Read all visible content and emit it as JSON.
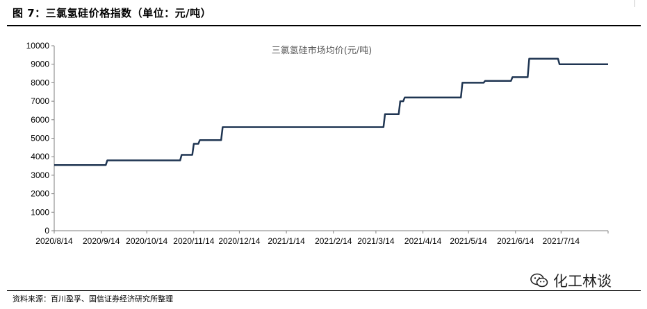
{
  "header": {
    "title": "图 7：三氯氢硅价格指数（单位：元/吨）"
  },
  "footer": {
    "source": "资料来源：百川盈孚、国信证券经济研究所整理",
    "watermark": "化工林谈",
    "watermark_icon": "wechat-icon"
  },
  "colors": {
    "line": "#1f3552",
    "axis": "#7f7f7f"
  },
  "chart_data": {
    "type": "line",
    "title": "",
    "xlabel": "",
    "ylabel": "",
    "legend": {
      "label": "三氯氢硅市场均价(元/吨)",
      "placement": "top-center"
    },
    "ylim": [
      0,
      10000
    ],
    "yticks": [
      0,
      1000,
      2000,
      3000,
      4000,
      5000,
      6000,
      7000,
      8000,
      9000,
      10000
    ],
    "xlim": [
      "2020-08-14",
      "2021-08-14"
    ],
    "xticks": [
      {
        "date": "2020-08-14",
        "label": "2020/8/14"
      },
      {
        "date": "2020-09-14",
        "label": "2020/9/14"
      },
      {
        "date": "2020-10-14",
        "label": "2020/10/14"
      },
      {
        "date": "2020-11-14",
        "label": "2020/11/14"
      },
      {
        "date": "2020-12-14",
        "label": "2020/12/14"
      },
      {
        "date": "2021-01-14",
        "label": "2021/1/14"
      },
      {
        "date": "2021-02-14",
        "label": "2021/2/14"
      },
      {
        "date": "2021-03-14",
        "label": "2021/3/14"
      },
      {
        "date": "2021-04-14",
        "label": "2021/4/14"
      },
      {
        "date": "2021-05-14",
        "label": "2021/5/14"
      },
      {
        "date": "2021-06-14",
        "label": "2021/6/14"
      },
      {
        "date": "2021-07-14",
        "label": "2021/7/14"
      },
      {
        "date": "2021-08-14",
        "label": ""
      }
    ],
    "series": [
      {
        "name": "三氯氢硅市场均价(元/吨)",
        "x": [
          "2020-08-14",
          "2020-09-17",
          "2020-09-18",
          "2020-11-05",
          "2020-11-06",
          "2020-11-13",
          "2020-11-14",
          "2020-11-17",
          "2020-11-18",
          "2020-12-02",
          "2020-12-03",
          "2021-03-19",
          "2021-03-20",
          "2021-03-29",
          "2021-03-30",
          "2021-04-01",
          "2021-04-02",
          "2021-05-09",
          "2021-05-10",
          "2021-05-24",
          "2021-05-25",
          "2021-06-11",
          "2021-06-12",
          "2021-06-22",
          "2021-06-23",
          "2021-07-12",
          "2021-07-13",
          "2021-08-14"
        ],
        "values": [
          3550,
          3550,
          3800,
          3800,
          4100,
          4100,
          4700,
          4700,
          4900,
          4900,
          5600,
          5600,
          6300,
          6300,
          7000,
          7000,
          7200,
          7200,
          8000,
          8000,
          8100,
          8100,
          8300,
          8300,
          9300,
          9300,
          9000,
          9000
        ]
      }
    ]
  }
}
